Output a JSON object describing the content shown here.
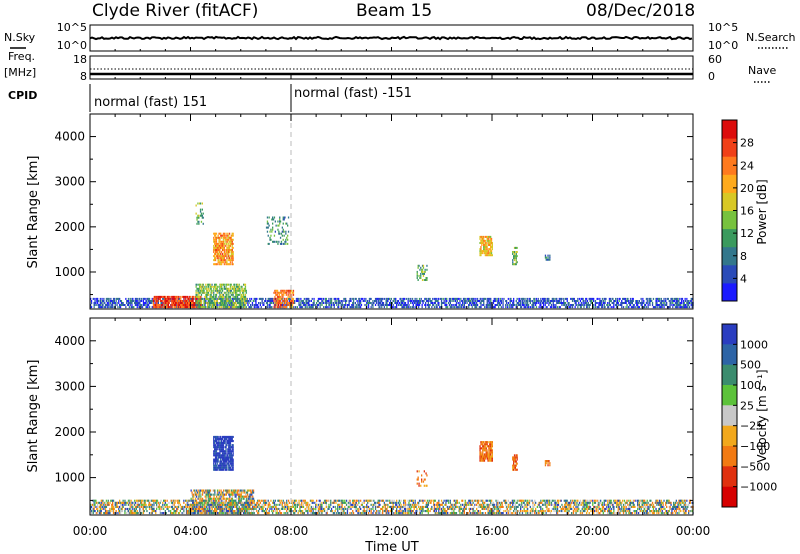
{
  "header": {
    "station": "Clyde River (fitACF)",
    "beam": "Beam 15",
    "date": "08/Dec/2018"
  },
  "nsky_panel": {
    "left_label": "N.Sky",
    "right_label": "N.Search",
    "left_ticks": [
      "10^5",
      "10^0"
    ],
    "right_ticks": [
      "10^5",
      "10^0"
    ]
  },
  "freq_panel": {
    "left_label_top": "Freq.",
    "left_label_unit": "[MHz]",
    "right_label": "Nave",
    "left_ticks": [
      "18",
      "8"
    ],
    "right_ticks": [
      "60",
      "0"
    ]
  },
  "cpid": {
    "label": "CPID",
    "segments": [
      {
        "start_hour": 0,
        "label": "normal (fast) 151"
      },
      {
        "start_hour": 8,
        "label": "normal (fast) -151"
      }
    ]
  },
  "chart_data": [
    {
      "type": "heatmap",
      "name": "power",
      "ylabel": "Slant Range [km]",
      "xlabel": "Time UT",
      "xlim": [
        0,
        24
      ],
      "ylim": [
        180,
        4500
      ],
      "x_ticks": [
        "00:00",
        "04:00",
        "08:00",
        "12:00",
        "16:00",
        "20:00",
        "00:00"
      ],
      "y_ticks": [
        1000,
        2000,
        3000,
        4000
      ],
      "colorbar": {
        "label": "Power [dB]",
        "ticks": [
          "4",
          "8",
          "12",
          "16",
          "20",
          "24",
          "28"
        ],
        "range": [
          0,
          32
        ],
        "colors": [
          "#1b1bff",
          "#2a4bb8",
          "#33778c",
          "#3a9a5e",
          "#77c23e",
          "#d8c825",
          "#ffaa1c",
          "#ff7a1e",
          "#f04018",
          "#dc0c0c"
        ]
      },
      "echo_regions": [
        {
          "t": [
            0.0,
            24.0
          ],
          "r": [
            200,
            420
          ],
          "level": 5,
          "density": 0.55
        },
        {
          "t": [
            2.5,
            4.4
          ],
          "r": [
            200,
            450
          ],
          "level": 28,
          "density": 0.8
        },
        {
          "t": [
            4.2,
            6.2
          ],
          "r": [
            200,
            700
          ],
          "level": 14,
          "density": 0.6
        },
        {
          "t": [
            4.9,
            5.7
          ],
          "r": [
            1150,
            1850
          ],
          "level": 22,
          "density": 0.75
        },
        {
          "t": [
            7.3,
            8.1
          ],
          "r": [
            200,
            600
          ],
          "level": 24,
          "density": 0.6
        },
        {
          "t": [
            15.5,
            16.0
          ],
          "r": [
            1350,
            1800
          ],
          "level": 20,
          "density": 0.75
        },
        {
          "t": [
            16.8,
            17.0
          ],
          "r": [
            1150,
            1550
          ],
          "level": 14,
          "density": 0.6
        },
        {
          "t": [
            18.1,
            18.3
          ],
          "r": [
            1250,
            1350
          ],
          "level": 8,
          "density": 0.7
        },
        {
          "t": [
            13.0,
            13.4
          ],
          "r": [
            800,
            1150
          ],
          "level": 12,
          "density": 0.4
        },
        {
          "t": [
            7.0,
            7.9
          ],
          "r": [
            1600,
            2200
          ],
          "level": 10,
          "density": 0.2
        },
        {
          "t": [
            4.2,
            4.5
          ],
          "r": [
            2000,
            2500
          ],
          "level": 12,
          "density": 0.3
        }
      ]
    },
    {
      "type": "heatmap",
      "name": "velocity",
      "ylabel": "Slant Range [km]",
      "xlabel": "Time UT",
      "xlim": [
        0,
        24
      ],
      "ylim": [
        180,
        4500
      ],
      "x_ticks": [
        "00:00",
        "04:00",
        "08:00",
        "12:00",
        "16:00",
        "20:00",
        "00:00"
      ],
      "y_ticks": [
        1000,
        2000,
        3000,
        4000
      ],
      "colorbar": {
        "label": "Velocity [m s⁻¹]",
        "ticks": [
          "1000",
          "500",
          "100",
          "25",
          "-25",
          "-100",
          "-500",
          "-1000"
        ],
        "colors": [
          "#2a3dc0",
          "#2d64a6",
          "#3b8c6e",
          "#5cc23a",
          "#c8c8c8",
          "#f2a81c",
          "#f27a12",
          "#e0300e",
          "#d60000"
        ]
      },
      "echo_regions": [
        {
          "t": [
            0.0,
            24.0
          ],
          "r": [
            200,
            480
          ],
          "class": "mixed",
          "density": 0.5
        },
        {
          "t": [
            4.9,
            5.7
          ],
          "r": [
            1150,
            1900
          ],
          "class": 0,
          "density": 0.8
        },
        {
          "t": [
            15.5,
            16.0
          ],
          "r": [
            1350,
            1800
          ],
          "class": 6,
          "density": 0.8
        },
        {
          "t": [
            16.8,
            17.0
          ],
          "r": [
            1150,
            1500
          ],
          "class": 6,
          "density": 0.7
        },
        {
          "t": [
            18.1,
            18.3
          ],
          "r": [
            1250,
            1350
          ],
          "class": 6,
          "density": 0.7
        },
        {
          "t": [
            13.0,
            13.4
          ],
          "r": [
            800,
            1150
          ],
          "class": 6,
          "density": 0.35
        },
        {
          "t": [
            4.0,
            6.5
          ],
          "r": [
            200,
            700
          ],
          "class": "mixed",
          "density": 0.6
        }
      ]
    }
  ]
}
